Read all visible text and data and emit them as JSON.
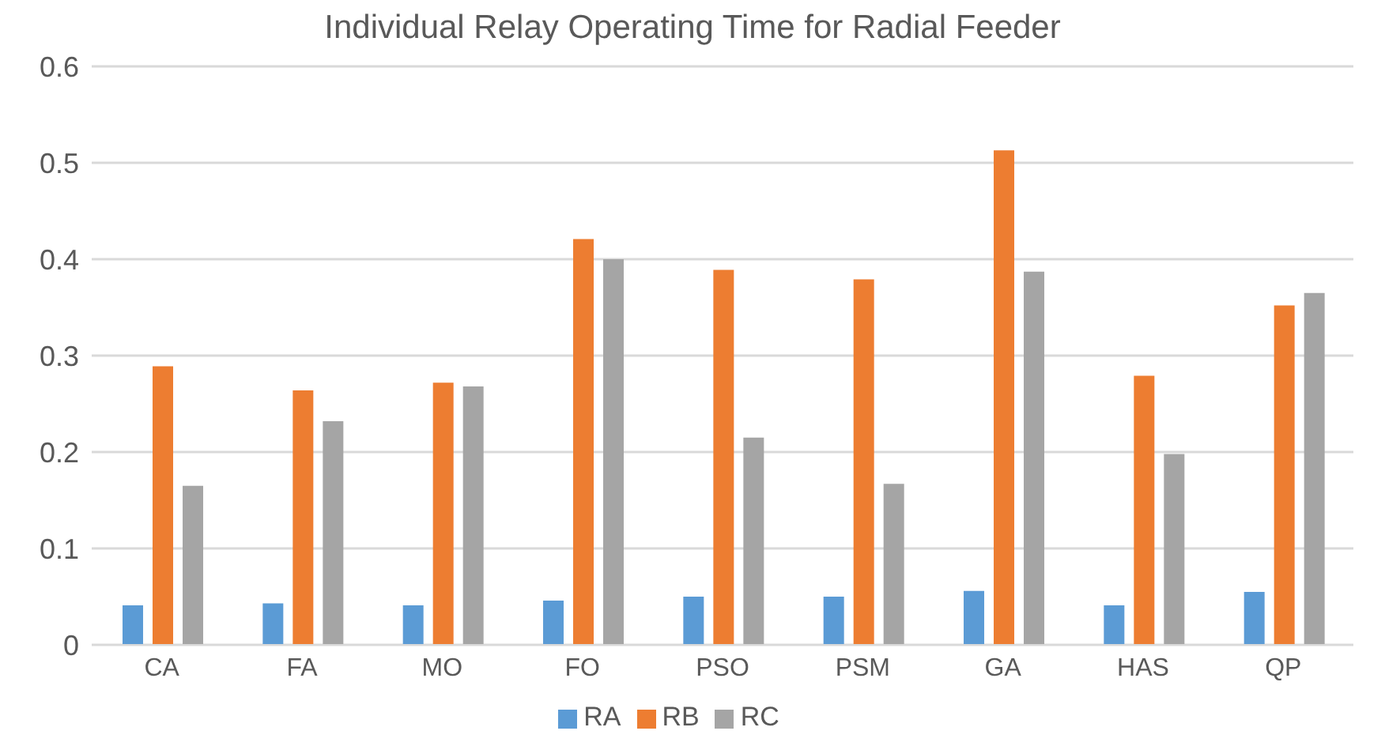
{
  "chart_data": {
    "type": "bar",
    "title": "Individual Relay Operating Time for Radial Feeder",
    "categories": [
      "CA",
      "FA",
      "MO",
      "FO",
      "PSO",
      "PSM",
      "GA",
      "HAS",
      "QP"
    ],
    "series": [
      {
        "name": "RA",
        "color": "#5b9bd5",
        "values": [
          0.041,
          0.043,
          0.041,
          0.046,
          0.05,
          0.05,
          0.056,
          0.041,
          0.055
        ]
      },
      {
        "name": "RB",
        "color": "#ed7d31",
        "values": [
          0.289,
          0.264,
          0.272,
          0.421,
          0.389,
          0.379,
          0.513,
          0.279,
          0.352
        ]
      },
      {
        "name": "RC",
        "color": "#a5a5a5",
        "values": [
          0.165,
          0.232,
          0.268,
          0.4,
          0.215,
          0.167,
          0.387,
          0.198,
          0.365
        ]
      }
    ],
    "ylim": [
      0,
      0.6
    ],
    "yticks": [
      0,
      0.1,
      0.2,
      0.3,
      0.4,
      0.5,
      0.6
    ],
    "grid": "y",
    "legend": "bottom"
  }
}
